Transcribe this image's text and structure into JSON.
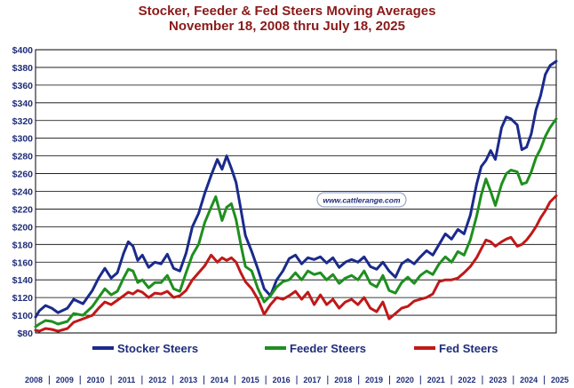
{
  "chart_data": {
    "type": "line",
    "title": "Stocker, Feeder & Fed Steers Moving Averages",
    "subtitle": "November 18, 2008 thru July 18, 2025",
    "watermark": "www.cattlerange.com",
    "ylim": [
      80,
      400
    ],
    "yticks": [
      "$400",
      "$380",
      "$360",
      "$340",
      "$320",
      "$300",
      "$280",
      "$260",
      "$240",
      "$220",
      "$200",
      "$180",
      "$160",
      "$140",
      "$120",
      "$100",
      "$80"
    ],
    "xlim": [
      2008.88,
      2025.55
    ],
    "xticks": [
      "2008",
      "2009",
      "2010",
      "2011",
      "2012",
      "2013",
      "2014",
      "2015",
      "2016",
      "2017",
      "2018",
      "2019",
      "2020",
      "2021",
      "2022",
      "2023",
      "2024",
      "2025"
    ],
    "grid": true,
    "legend_position": "bottom",
    "colors": {
      "stocker": "#1a2a8c",
      "feeder": "#1e8f1e",
      "fed": "#c01818"
    },
    "series": [
      {
        "name": "Stocker Steers",
        "key": "stocker",
        "points": [
          [
            2008.88,
            98
          ],
          [
            2009.0,
            105
          ],
          [
            2009.2,
            111
          ],
          [
            2009.4,
            108
          ],
          [
            2009.6,
            103
          ],
          [
            2009.9,
            108
          ],
          [
            2010.1,
            118
          ],
          [
            2010.4,
            113
          ],
          [
            2010.7,
            128
          ],
          [
            2010.9,
            142
          ],
          [
            2011.1,
            153
          ],
          [
            2011.3,
            142
          ],
          [
            2011.5,
            148
          ],
          [
            2011.7,
            170
          ],
          [
            2011.85,
            183
          ],
          [
            2012.0,
            178
          ],
          [
            2012.15,
            162
          ],
          [
            2012.3,
            168
          ],
          [
            2012.5,
            154
          ],
          [
            2012.7,
            160
          ],
          [
            2012.9,
            158
          ],
          [
            2013.1,
            169
          ],
          [
            2013.3,
            153
          ],
          [
            2013.5,
            150
          ],
          [
            2013.7,
            170
          ],
          [
            2013.9,
            200
          ],
          [
            2014.1,
            215
          ],
          [
            2014.3,
            238
          ],
          [
            2014.5,
            258
          ],
          [
            2014.7,
            276
          ],
          [
            2014.85,
            265
          ],
          [
            2015.0,
            280
          ],
          [
            2015.15,
            266
          ],
          [
            2015.3,
            250
          ],
          [
            2015.45,
            220
          ],
          [
            2015.6,
            190
          ],
          [
            2015.8,
            172
          ],
          [
            2016.0,
            152
          ],
          [
            2016.2,
            130
          ],
          [
            2016.4,
            122
          ],
          [
            2016.6,
            140
          ],
          [
            2016.8,
            150
          ],
          [
            2017.0,
            164
          ],
          [
            2017.2,
            168
          ],
          [
            2017.4,
            158
          ],
          [
            2017.6,
            165
          ],
          [
            2017.8,
            163
          ],
          [
            2018.0,
            166
          ],
          [
            2018.2,
            159
          ],
          [
            2018.4,
            165
          ],
          [
            2018.6,
            154
          ],
          [
            2018.8,
            160
          ],
          [
            2019.0,
            163
          ],
          [
            2019.2,
            160
          ],
          [
            2019.4,
            166
          ],
          [
            2019.6,
            155
          ],
          [
            2019.8,
            152
          ],
          [
            2020.0,
            160
          ],
          [
            2020.2,
            150
          ],
          [
            2020.4,
            143
          ],
          [
            2020.6,
            158
          ],
          [
            2020.8,
            163
          ],
          [
            2021.0,
            158
          ],
          [
            2021.2,
            166
          ],
          [
            2021.4,
            173
          ],
          [
            2021.6,
            168
          ],
          [
            2021.8,
            180
          ],
          [
            2022.0,
            192
          ],
          [
            2022.2,
            186
          ],
          [
            2022.4,
            197
          ],
          [
            2022.6,
            192
          ],
          [
            2022.8,
            213
          ],
          [
            2023.0,
            248
          ],
          [
            2023.15,
            268
          ],
          [
            2023.3,
            275
          ],
          [
            2023.45,
            286
          ],
          [
            2023.6,
            276
          ],
          [
            2023.8,
            312
          ],
          [
            2023.95,
            324
          ],
          [
            2024.1,
            322
          ],
          [
            2024.3,
            315
          ],
          [
            2024.45,
            287
          ],
          [
            2024.6,
            290
          ],
          [
            2024.75,
            305
          ],
          [
            2024.9,
            332
          ],
          [
            2025.05,
            348
          ],
          [
            2025.2,
            372
          ],
          [
            2025.35,
            382
          ],
          [
            2025.55,
            387
          ]
        ]
      },
      {
        "name": "Feeder Steers",
        "key": "feeder",
        "points": [
          [
            2008.88,
            87
          ],
          [
            2009.0,
            90
          ],
          [
            2009.2,
            94
          ],
          [
            2009.4,
            93
          ],
          [
            2009.6,
            90
          ],
          [
            2009.9,
            93
          ],
          [
            2010.1,
            102
          ],
          [
            2010.4,
            100
          ],
          [
            2010.7,
            110
          ],
          [
            2010.9,
            120
          ],
          [
            2011.1,
            130
          ],
          [
            2011.3,
            123
          ],
          [
            2011.5,
            127
          ],
          [
            2011.7,
            142
          ],
          [
            2011.85,
            152
          ],
          [
            2012.0,
            150
          ],
          [
            2012.15,
            137
          ],
          [
            2012.3,
            140
          ],
          [
            2012.5,
            131
          ],
          [
            2012.7,
            137
          ],
          [
            2012.9,
            137
          ],
          [
            2013.1,
            145
          ],
          [
            2013.3,
            130
          ],
          [
            2013.5,
            127
          ],
          [
            2013.7,
            148
          ],
          [
            2013.9,
            168
          ],
          [
            2014.1,
            180
          ],
          [
            2014.3,
            205
          ],
          [
            2014.5,
            222
          ],
          [
            2014.65,
            234
          ],
          [
            2014.85,
            207
          ],
          [
            2015.0,
            222
          ],
          [
            2015.15,
            226
          ],
          [
            2015.3,
            208
          ],
          [
            2015.45,
            180
          ],
          [
            2015.6,
            155
          ],
          [
            2015.8,
            150
          ],
          [
            2016.0,
            130
          ],
          [
            2016.2,
            115
          ],
          [
            2016.4,
            122
          ],
          [
            2016.6,
            132
          ],
          [
            2016.8,
            138
          ],
          [
            2017.0,
            140
          ],
          [
            2017.2,
            148
          ],
          [
            2017.4,
            140
          ],
          [
            2017.6,
            150
          ],
          [
            2017.8,
            146
          ],
          [
            2018.0,
            148
          ],
          [
            2018.2,
            140
          ],
          [
            2018.4,
            146
          ],
          [
            2018.6,
            136
          ],
          [
            2018.8,
            142
          ],
          [
            2019.0,
            145
          ],
          [
            2019.2,
            140
          ],
          [
            2019.4,
            150
          ],
          [
            2019.6,
            136
          ],
          [
            2019.8,
            132
          ],
          [
            2020.0,
            145
          ],
          [
            2020.2,
            128
          ],
          [
            2020.4,
            125
          ],
          [
            2020.6,
            137
          ],
          [
            2020.8,
            143
          ],
          [
            2021.0,
            136
          ],
          [
            2021.2,
            145
          ],
          [
            2021.4,
            150
          ],
          [
            2021.6,
            146
          ],
          [
            2021.8,
            158
          ],
          [
            2022.0,
            166
          ],
          [
            2022.2,
            160
          ],
          [
            2022.4,
            172
          ],
          [
            2022.6,
            168
          ],
          [
            2022.8,
            185
          ],
          [
            2023.0,
            212
          ],
          [
            2023.15,
            236
          ],
          [
            2023.3,
            254
          ],
          [
            2023.45,
            240
          ],
          [
            2023.6,
            224
          ],
          [
            2023.8,
            248
          ],
          [
            2023.95,
            260
          ],
          [
            2024.1,
            264
          ],
          [
            2024.3,
            262
          ],
          [
            2024.45,
            248
          ],
          [
            2024.6,
            250
          ],
          [
            2024.75,
            262
          ],
          [
            2024.9,
            278
          ],
          [
            2025.05,
            288
          ],
          [
            2025.2,
            302
          ],
          [
            2025.35,
            312
          ],
          [
            2025.55,
            322
          ]
        ]
      },
      {
        "name": "Fed Steers",
        "key": "fed",
        "points": [
          [
            2008.88,
            83
          ],
          [
            2009.0,
            82
          ],
          [
            2009.2,
            85
          ],
          [
            2009.4,
            84
          ],
          [
            2009.6,
            82
          ],
          [
            2009.9,
            85
          ],
          [
            2010.1,
            92
          ],
          [
            2010.4,
            96
          ],
          [
            2010.7,
            100
          ],
          [
            2010.9,
            108
          ],
          [
            2011.1,
            115
          ],
          [
            2011.3,
            112
          ],
          [
            2011.5,
            117
          ],
          [
            2011.7,
            122
          ],
          [
            2011.85,
            126
          ],
          [
            2012.0,
            124
          ],
          [
            2012.15,
            128
          ],
          [
            2012.3,
            126
          ],
          [
            2012.5,
            120
          ],
          [
            2012.7,
            125
          ],
          [
            2012.9,
            124
          ],
          [
            2013.1,
            127
          ],
          [
            2013.3,
            120
          ],
          [
            2013.5,
            122
          ],
          [
            2013.7,
            128
          ],
          [
            2013.9,
            140
          ],
          [
            2014.1,
            148
          ],
          [
            2014.3,
            156
          ],
          [
            2014.5,
            168
          ],
          [
            2014.7,
            160
          ],
          [
            2014.85,
            165
          ],
          [
            2015.0,
            162
          ],
          [
            2015.15,
            165
          ],
          [
            2015.3,
            160
          ],
          [
            2015.45,
            148
          ],
          [
            2015.6,
            138
          ],
          [
            2015.8,
            130
          ],
          [
            2016.0,
            118
          ],
          [
            2016.2,
            101
          ],
          [
            2016.4,
            112
          ],
          [
            2016.6,
            120
          ],
          [
            2016.8,
            118
          ],
          [
            2017.0,
            122
          ],
          [
            2017.2,
            127
          ],
          [
            2017.4,
            118
          ],
          [
            2017.6,
            126
          ],
          [
            2017.8,
            112
          ],
          [
            2018.0,
            123
          ],
          [
            2018.2,
            112
          ],
          [
            2018.4,
            118
          ],
          [
            2018.6,
            108
          ],
          [
            2018.8,
            115
          ],
          [
            2019.0,
            118
          ],
          [
            2019.2,
            112
          ],
          [
            2019.4,
            120
          ],
          [
            2019.6,
            108
          ],
          [
            2019.8,
            104
          ],
          [
            2020.0,
            115
          ],
          [
            2020.2,
            96
          ],
          [
            2020.4,
            102
          ],
          [
            2020.6,
            108
          ],
          [
            2020.8,
            110
          ],
          [
            2021.0,
            116
          ],
          [
            2021.2,
            118
          ],
          [
            2021.4,
            120
          ],
          [
            2021.6,
            124
          ],
          [
            2021.8,
            138
          ],
          [
            2022.0,
            140
          ],
          [
            2022.2,
            140
          ],
          [
            2022.4,
            142
          ],
          [
            2022.6,
            148
          ],
          [
            2022.8,
            155
          ],
          [
            2023.0,
            165
          ],
          [
            2023.15,
            175
          ],
          [
            2023.3,
            185
          ],
          [
            2023.45,
            183
          ],
          [
            2023.6,
            178
          ],
          [
            2023.8,
            183
          ],
          [
            2023.95,
            186
          ],
          [
            2024.1,
            188
          ],
          [
            2024.3,
            178
          ],
          [
            2024.45,
            180
          ],
          [
            2024.6,
            185
          ],
          [
            2024.75,
            192
          ],
          [
            2024.9,
            200
          ],
          [
            2025.05,
            210
          ],
          [
            2025.2,
            218
          ],
          [
            2025.35,
            228
          ],
          [
            2025.55,
            235
          ]
        ]
      }
    ]
  }
}
